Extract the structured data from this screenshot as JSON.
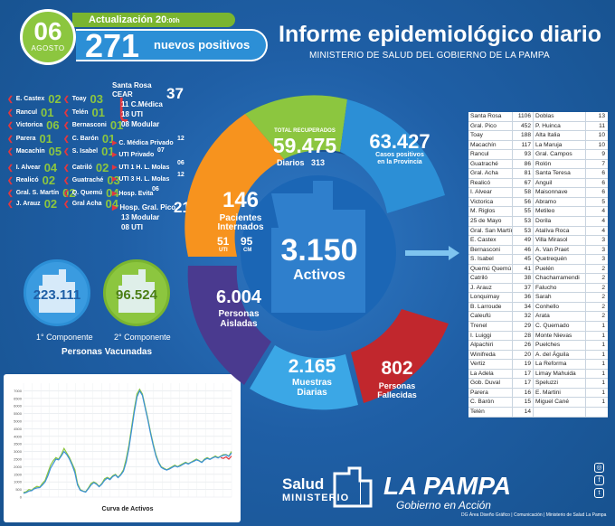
{
  "header": {
    "day": "06",
    "month": "AGOSTO",
    "update_label": "Actualización 20",
    "update_suffix": ":00h",
    "positives_number": "271",
    "positives_label": "nuevos positivos",
    "title": "Informe epidemiológico diario",
    "subtitle": "MINISTERIO DE SALUD DEL GOBIERNO DE LA PAMPA"
  },
  "left_localities": [
    {
      "name": "E. Castex",
      "value": "02"
    },
    {
      "name": "Rancul",
      "value": "01"
    },
    {
      "name": "Victorica",
      "value": "06"
    },
    {
      "name": "Parera",
      "value": "01"
    },
    {
      "name": "Macachín",
      "value": "05"
    },
    {
      "name": "I. Alvear",
      "value": "04"
    },
    {
      "name": "Realicó",
      "value": "02"
    },
    {
      "name": "Gral. S. Martín",
      "value": "02"
    },
    {
      "name": "J. Arauz",
      "value": "02"
    }
  ],
  "mid_localities": [
    {
      "name": "Toay",
      "value": "03"
    },
    {
      "name": "Telén",
      "value": "01"
    },
    {
      "name": "Bernasconi",
      "value": "01"
    },
    {
      "name": "C. Barón",
      "value": "01"
    },
    {
      "name": "S. Isabel",
      "value": "01"
    },
    {
      "name": "Catriló",
      "value": "02"
    },
    {
      "name": "Guatraché",
      "value": "03"
    },
    {
      "name": "Q. Quemú",
      "value": "04"
    },
    {
      "name": "Gral Acha",
      "value": "04"
    }
  ],
  "hospitals": {
    "santa_rosa_label": "Santa Rosa",
    "cear_label": "CEAR",
    "cear_total": "37",
    "cear_items": [
      {
        "value": "11",
        "label": "C.Médica"
      },
      {
        "value": "18",
        "label": "UTI"
      },
      {
        "value": "08",
        "label": "Modular"
      }
    ],
    "cmedica_privado_label": "C. Médica Privado",
    "cmedica_privado_value": "12",
    "uti_privado_label": "UTI Privado",
    "uti_privado_value": "07",
    "uti1_label": "UTI 1 H. L. Molas",
    "uti1_value": "06",
    "uti3_label": "UTI 3 H. L. Molas",
    "uti3_value": "12",
    "evita_label": "Hosp. Evita",
    "evita_value": "06",
    "pico_label": "Hosp. Gral. Pico",
    "pico_total": "21",
    "pico_items": [
      {
        "value": "13",
        "label": "Modular"
      },
      {
        "value": "08",
        "label": "UTI"
      }
    ]
  },
  "vaccines": {
    "first_value": "223.111",
    "first_label": "1° Componente",
    "second_value": "96.524",
    "second_label": "2° Componente",
    "title": "Personas Vacunadas"
  },
  "stats": {
    "recovered_label": "TOTAL RECUPERADOS",
    "recovered_value": "59.475",
    "recovered_daily_label": "Diarios",
    "recovered_daily_value": "313",
    "province_value": "63.427",
    "province_label_1": "Casos positivos",
    "province_label_2": "en la Provincia",
    "hospitalized_value": "146",
    "hospitalized_label_1": "Pacientes",
    "hospitalized_label_2": "Internados",
    "uti_value": "51",
    "uti_label": "UTI",
    "cm_value": "95",
    "cm_label": "CM",
    "active_value": "3.150",
    "active_label": "Activos",
    "isolated_value": "6.004",
    "isolated_label_1": "Personas",
    "isolated_label_2": "Aisladas",
    "samples_value": "2.165",
    "samples_label_1": "Muestras",
    "samples_label_2": "Diarias",
    "deaths_value": "802",
    "deaths_label_1": "Personas",
    "deaths_label_2": "Fallecidas"
  },
  "table_rows": [
    [
      "Santa Rosa",
      "1106",
      "Doblas",
      "13"
    ],
    [
      "Gral. Pico",
      "452",
      "P. Huinca",
      "11"
    ],
    [
      "Toay",
      "188",
      "Alta Italia",
      "10"
    ],
    [
      "Macachín",
      "117",
      "La Maruja",
      "10"
    ],
    [
      "Rancul",
      "93",
      "Gral. Campos",
      "9"
    ],
    [
      "Guatraché",
      "86",
      "Rolón",
      "7"
    ],
    [
      "Gral. Acha",
      "81",
      "Santa Teresa",
      "6"
    ],
    [
      "Realicó",
      "67",
      "Anguil",
      "6"
    ],
    [
      "I. Alvear",
      "58",
      "Maisonnave",
      "6"
    ],
    [
      "Victorica",
      "56",
      "Abramo",
      "5"
    ],
    [
      "M. Riglos",
      "55",
      "Metileo",
      "4"
    ],
    [
      "25 de Mayo",
      "53",
      "Dorila",
      "4"
    ],
    [
      "Gral. San Martín",
      "53",
      "Atalíva Roca",
      "4"
    ],
    [
      "E. Castex",
      "49",
      "Villa Mirasol",
      "3"
    ],
    [
      "Bernasconi",
      "46",
      "A. Van Praet",
      "3"
    ],
    [
      "S. Isabel",
      "45",
      "Quetrequén",
      "3"
    ],
    [
      "Quemú Quemú",
      "41",
      "Puelén",
      "2"
    ],
    [
      "Catriló",
      "38",
      "Chacharramendi",
      "2"
    ],
    [
      "J. Arauz",
      "37",
      "Falucho",
      "2"
    ],
    [
      "Lonquimay",
      "36",
      "Sarah",
      "2"
    ],
    [
      "B. Larroude",
      "34",
      "Conhello",
      "2"
    ],
    [
      "Caleufú",
      "32",
      "Arata",
      "2"
    ],
    [
      "Trenel",
      "29",
      "C. Quemado",
      "1"
    ],
    [
      "I. Luiggi",
      "28",
      "Monte Nievas",
      "1"
    ],
    [
      "Alpachiri",
      "26",
      "Puelches",
      "1"
    ],
    [
      "Winifreda",
      "20",
      "A. del Águila",
      "1"
    ],
    [
      "Vertiz",
      "19",
      "La Reforma",
      "1"
    ],
    [
      "La Adela",
      "17",
      "Limay Mahuida",
      "1"
    ],
    [
      "Gob. Duval",
      "17",
      "Speluzzi",
      "1"
    ],
    [
      "Parera",
      "16",
      "E. Martini",
      "1"
    ],
    [
      "C. Barón",
      "15",
      "Miguel Cané",
      "1"
    ],
    [
      "Telén",
      "14",
      "",
      ""
    ]
  ],
  "chart_data": {
    "type": "line",
    "title": "",
    "xlabel": "Curva de Activos",
    "ylabel": "",
    "ylim": [
      0,
      7500
    ],
    "y_ticks": [
      "7000",
      "6500",
      "6000",
      "5500",
      "5000",
      "4500",
      "4000",
      "3500",
      "3000",
      "2500",
      "2000",
      "1500",
      "1000",
      "500",
      "0"
    ],
    "series": [
      {
        "name": "",
        "color": "#8cc63f",
        "values": [
          300,
          350,
          500,
          450,
          600,
          700,
          650,
          900,
          1100,
          1600,
          2100,
          2400,
          2600,
          2500,
          2800,
          3200,
          2900,
          2600,
          2200,
          1800,
          900,
          500,
          400,
          350,
          600,
          900,
          1000,
          900,
          700,
          900,
          1200,
          1300,
          1200,
          1400,
          1500,
          1300,
          1500,
          1800,
          2500,
          3400,
          4600,
          5800,
          6800,
          7100,
          6800,
          6000,
          5200,
          4300,
          3500,
          2800,
          2300,
          2000,
          1900,
          1800,
          1900,
          2000,
          2100,
          2000,
          2100,
          2200,
          2300,
          2200,
          2300,
          2400,
          2500,
          2400,
          2300,
          2500,
          2600,
          2500,
          2600,
          2700,
          2600,
          2700,
          2800,
          2800,
          2700,
          3000
        ]
      },
      {
        "name": "",
        "color": "#3a8fd8",
        "values": [
          250,
          300,
          400,
          420,
          550,
          600,
          620,
          800,
          1000,
          1400,
          1900,
          2200,
          2500,
          2450,
          2700,
          3000,
          2800,
          2500,
          2100,
          1600,
          800,
          450,
          380,
          330,
          550,
          800,
          950,
          850,
          680,
          850,
          1100,
          1250,
          1150,
          1350,
          1450,
          1280,
          1450,
          1700,
          2300,
          3200,
          4400,
          5600,
          6600,
          7000,
          6700,
          5900,
          5100,
          4200,
          3400,
          2700,
          2250,
          1950,
          1850,
          1780,
          1850,
          1950,
          2050,
          1980,
          2050,
          2150,
          2250,
          2180,
          2280,
          2350,
          2450,
          2380,
          2280,
          2450,
          2550,
          2480,
          2580,
          2650,
          2580,
          2680,
          2750,
          2780,
          2680,
          2900
        ]
      },
      {
        "name": "",
        "color": "#e2373f",
        "values": [
          null,
          null,
          null,
          null,
          null,
          null,
          null,
          null,
          null,
          null,
          null,
          null,
          null,
          null,
          null,
          null,
          null,
          null,
          null,
          null,
          null,
          null,
          null,
          null,
          null,
          null,
          null,
          null,
          null,
          null,
          null,
          null,
          null,
          null,
          null,
          null,
          null,
          null,
          null,
          null,
          null,
          null,
          null,
          null,
          null,
          null,
          null,
          null,
          null,
          null,
          null,
          null,
          null,
          null,
          null,
          null,
          null,
          null,
          null,
          null,
          null,
          null,
          null,
          null,
          null,
          null,
          null,
          null,
          null,
          null,
          null,
          null,
          null,
          2600,
          2550,
          2650,
          2500,
          2700
        ]
      }
    ]
  },
  "footer": {
    "salud": "Salud",
    "ministerio": "MINISTERIO",
    "lapampa": "LA PAMPA",
    "gobierno": "Gobierno en Acción",
    "credits": "DG Área Diseño Gráfico  |  Comunicación  |  Ministerio de Salud La Pampa"
  }
}
